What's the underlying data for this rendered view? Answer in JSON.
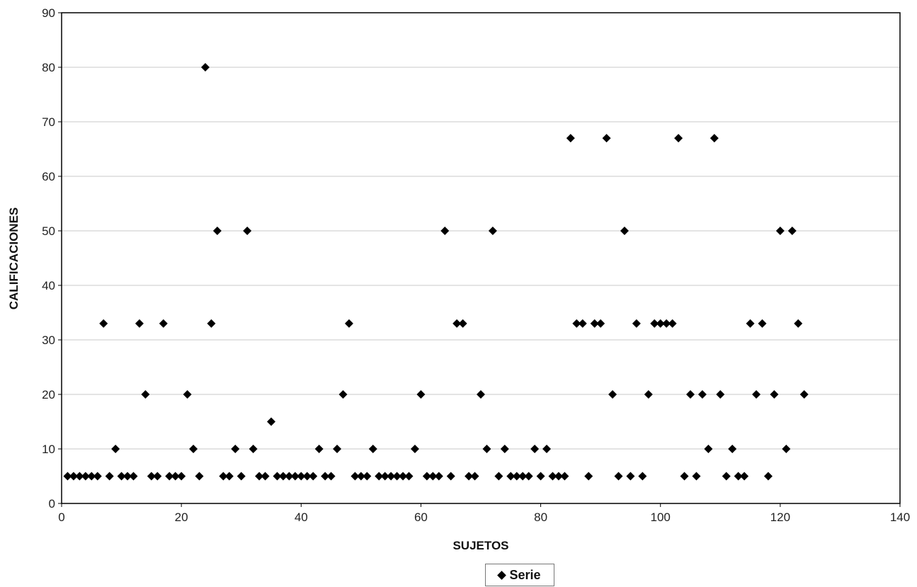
{
  "chart_data": {
    "type": "scatter",
    "title": "",
    "xlabel": "SUJETOS",
    "ylabel": "CALIFICACIONES",
    "xlim": [
      0,
      140
    ],
    "ylim": [
      0,
      90
    ],
    "x_ticks": [
      0,
      20,
      40,
      60,
      80,
      100,
      120,
      140
    ],
    "y_ticks": [
      0,
      10,
      20,
      30,
      40,
      50,
      60,
      70,
      80,
      90
    ],
    "grid": "horizontal",
    "legend_position": "bottom",
    "marker": "diamond",
    "marker_color": "#000000",
    "series": [
      {
        "name": "Serie",
        "points": [
          [
            1,
            5
          ],
          [
            2,
            5
          ],
          [
            3,
            5
          ],
          [
            4,
            5
          ],
          [
            5,
            5
          ],
          [
            6,
            5
          ],
          [
            7,
            33
          ],
          [
            8,
            5
          ],
          [
            9,
            10
          ],
          [
            10,
            5
          ],
          [
            11,
            5
          ],
          [
            12,
            5
          ],
          [
            13,
            33
          ],
          [
            14,
            20
          ],
          [
            15,
            5
          ],
          [
            16,
            5
          ],
          [
            17,
            33
          ],
          [
            18,
            5
          ],
          [
            19,
            5
          ],
          [
            20,
            5
          ],
          [
            21,
            20
          ],
          [
            22,
            10
          ],
          [
            23,
            5
          ],
          [
            24,
            80
          ],
          [
            25,
            33
          ],
          [
            26,
            50
          ],
          [
            27,
            5
          ],
          [
            28,
            5
          ],
          [
            29,
            10
          ],
          [
            30,
            5
          ],
          [
            31,
            50
          ],
          [
            32,
            10
          ],
          [
            33,
            5
          ],
          [
            34,
            5
          ],
          [
            35,
            15
          ],
          [
            36,
            5
          ],
          [
            37,
            5
          ],
          [
            38,
            5
          ],
          [
            39,
            5
          ],
          [
            40,
            5
          ],
          [
            41,
            5
          ],
          [
            42,
            5
          ],
          [
            43,
            10
          ],
          [
            44,
            5
          ],
          [
            45,
            5
          ],
          [
            46,
            10
          ],
          [
            47,
            20
          ],
          [
            48,
            33
          ],
          [
            49,
            5
          ],
          [
            50,
            5
          ],
          [
            51,
            5
          ],
          [
            52,
            10
          ],
          [
            53,
            5
          ],
          [
            54,
            5
          ],
          [
            55,
            5
          ],
          [
            56,
            5
          ],
          [
            57,
            5
          ],
          [
            58,
            5
          ],
          [
            59,
            10
          ],
          [
            60,
            20
          ],
          [
            61,
            5
          ],
          [
            62,
            5
          ],
          [
            63,
            5
          ],
          [
            64,
            50
          ],
          [
            65,
            5
          ],
          [
            66,
            33
          ],
          [
            67,
            33
          ],
          [
            68,
            5
          ],
          [
            69,
            5
          ],
          [
            70,
            20
          ],
          [
            71,
            10
          ],
          [
            72,
            50
          ],
          [
            73,
            5
          ],
          [
            74,
            10
          ],
          [
            75,
            5
          ],
          [
            76,
            5
          ],
          [
            77,
            5
          ],
          [
            78,
            5
          ],
          [
            79,
            10
          ],
          [
            80,
            5
          ],
          [
            81,
            10
          ],
          [
            82,
            5
          ],
          [
            83,
            5
          ],
          [
            84,
            5
          ],
          [
            85,
            67
          ],
          [
            86,
            33
          ],
          [
            87,
            33
          ],
          [
            88,
            5
          ],
          [
            89,
            33
          ],
          [
            90,
            33
          ],
          [
            91,
            67
          ],
          [
            92,
            20
          ],
          [
            93,
            5
          ],
          [
            94,
            50
          ],
          [
            95,
            5
          ],
          [
            96,
            33
          ],
          [
            97,
            5
          ],
          [
            98,
            20
          ],
          [
            99,
            33
          ],
          [
            100,
            33
          ],
          [
            101,
            33
          ],
          [
            102,
            33
          ],
          [
            103,
            67
          ],
          [
            104,
            5
          ],
          [
            105,
            20
          ],
          [
            106,
            5
          ],
          [
            107,
            20
          ],
          [
            108,
            10
          ],
          [
            109,
            67
          ],
          [
            110,
            20
          ],
          [
            111,
            5
          ],
          [
            112,
            10
          ],
          [
            113,
            5
          ],
          [
            114,
            5
          ],
          [
            115,
            33
          ],
          [
            116,
            20
          ],
          [
            117,
            33
          ],
          [
            118,
            5
          ],
          [
            119,
            20
          ],
          [
            120,
            50
          ],
          [
            121,
            10
          ],
          [
            122,
            50
          ],
          [
            123,
            33
          ],
          [
            124,
            20
          ]
        ]
      }
    ]
  }
}
